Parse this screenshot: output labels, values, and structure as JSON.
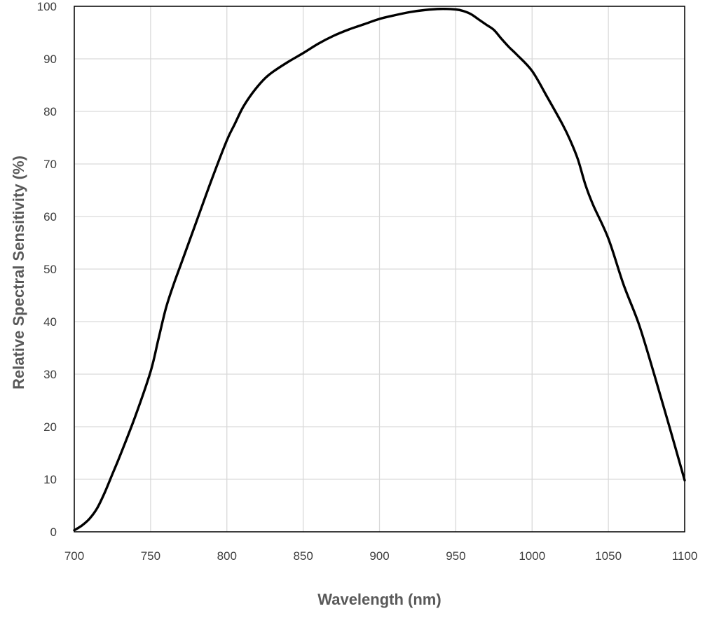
{
  "chart_data": {
    "type": "line",
    "title": "",
    "xlabel": "Wavelength (nm)",
    "ylabel": "Relative Spectral Sensitivity (%)",
    "xlim": [
      700,
      1100
    ],
    "ylim": [
      0,
      100
    ],
    "xticks": [
      700,
      750,
      800,
      850,
      900,
      950,
      1000,
      1050,
      1100
    ],
    "yticks": [
      0,
      10,
      20,
      30,
      40,
      50,
      60,
      70,
      80,
      90,
      100
    ],
    "grid": true,
    "legend": "none",
    "line_color": "#000000",
    "grid_color": "#d9d9d9",
    "series": [
      {
        "x": [
          700,
          705,
          710,
          715,
          720,
          725,
          730,
          740,
          750,
          755,
          760,
          765,
          770,
          780,
          790,
          800,
          805,
          810,
          815,
          820,
          825,
          830,
          840,
          850,
          860,
          870,
          880,
          890,
          900,
          910,
          920,
          930,
          940,
          950,
          955,
          960,
          965,
          970,
          975,
          980,
          985,
          990,
          1000,
          1010,
          1020,
          1025,
          1030,
          1035,
          1040,
          1050,
          1060,
          1070,
          1080,
          1090,
          1100
        ],
        "y": [
          0.3,
          1.2,
          2.5,
          4.5,
          7.5,
          11.0,
          14.5,
          22.0,
          30.5,
          36.5,
          42.5,
          47.0,
          51.0,
          59.0,
          67.0,
          74.5,
          77.5,
          80.5,
          82.8,
          84.7,
          86.3,
          87.5,
          89.4,
          91.1,
          92.9,
          94.4,
          95.6,
          96.6,
          97.6,
          98.3,
          98.9,
          99.3,
          99.5,
          99.4,
          99.1,
          98.5,
          97.5,
          96.5,
          95.5,
          93.8,
          92.2,
          90.8,
          87.7,
          82.7,
          77.5,
          74.5,
          70.9,
          66.0,
          62.2,
          55.8,
          47.0,
          39.5,
          30.0,
          20.0,
          9.8
        ]
      }
    ]
  }
}
